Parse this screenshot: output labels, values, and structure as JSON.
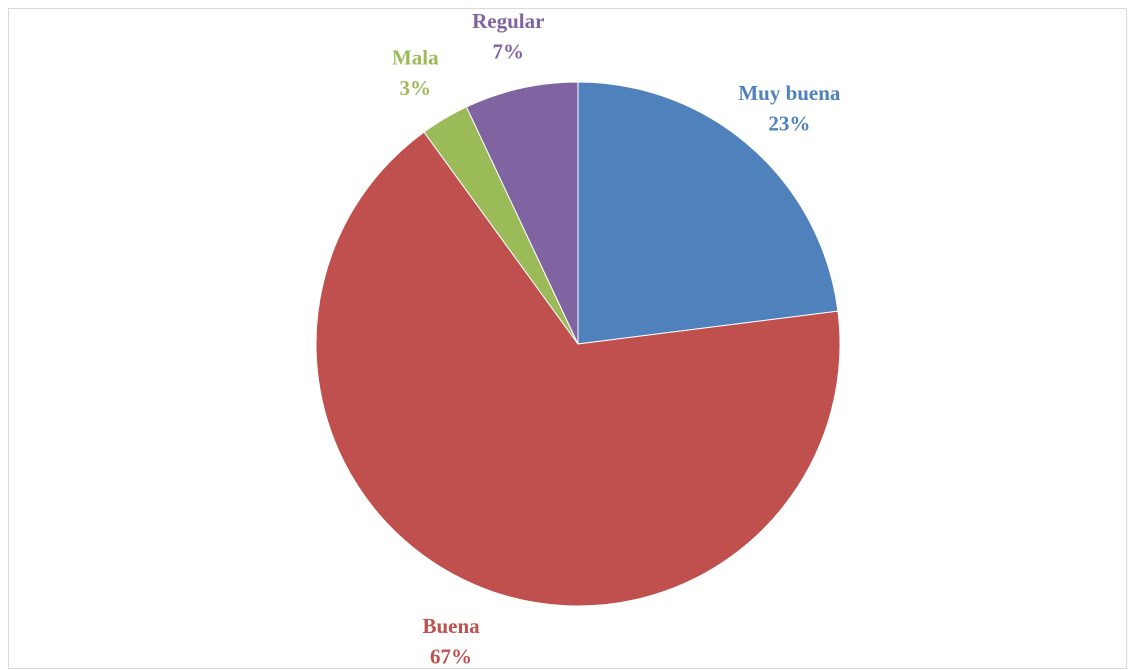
{
  "chart_data": {
    "type": "pie",
    "categories": [
      "Muy buena",
      "Buena",
      "Mala",
      "Regular"
    ],
    "values": [
      23,
      67,
      3,
      7
    ],
    "value_labels": [
      "23%",
      "67%",
      "3%",
      "7%"
    ],
    "colors": [
      "#4f81bd",
      "#c0504d",
      "#9bbb59",
      "#8064a2"
    ]
  }
}
